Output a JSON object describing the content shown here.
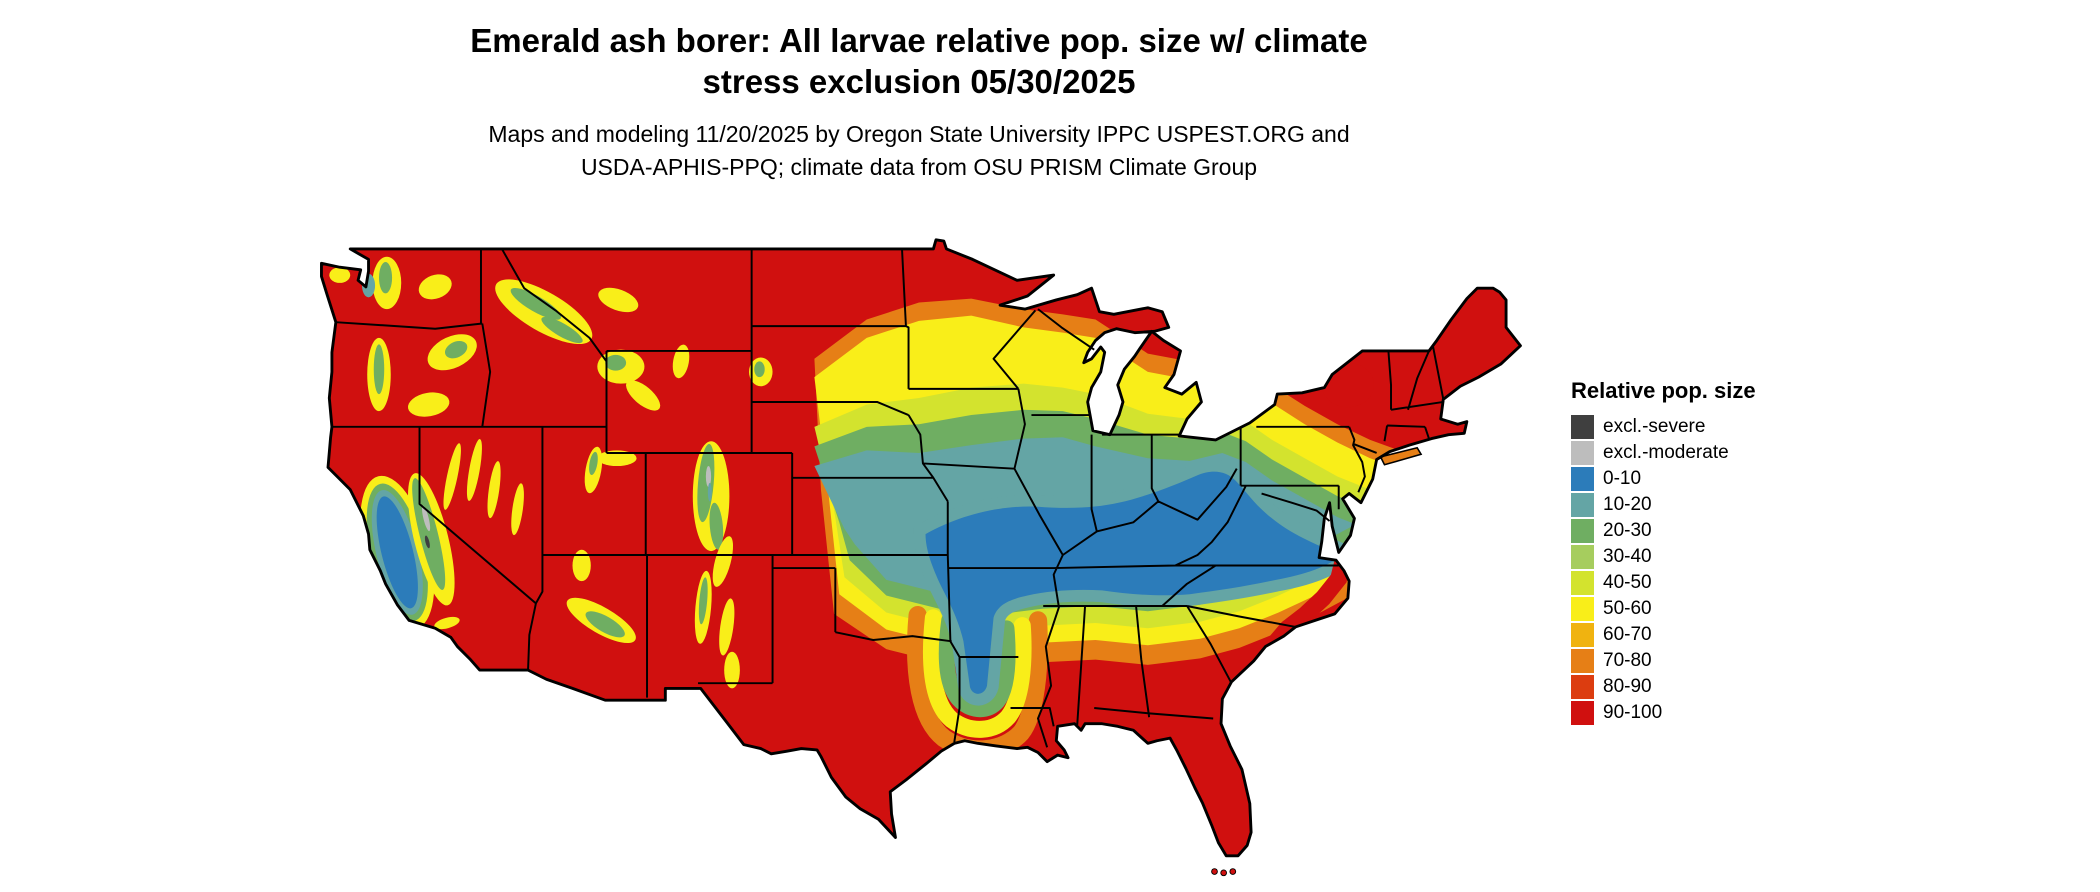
{
  "title": {
    "line1": "Emerald ash borer: All larvae relative pop. size w/ climate",
    "line2": "stress exclusion 05/30/2025"
  },
  "subtitle": {
    "line1": "Maps and modeling 11/20/2025 by Oregon State University IPPC USPEST.ORG and",
    "line2": "USDA-APHIS-PPQ; climate data from OSU PRISM Climate Group"
  },
  "legend": {
    "title": "Relative pop. size",
    "items": [
      {
        "key": "excl-severe",
        "label": "excl.-severe",
        "color": "#3f3f3f"
      },
      {
        "key": "excl-moderate",
        "label": "excl.-moderate",
        "color": "#bdbdbd"
      },
      {
        "key": "0-10",
        "label": "0-10",
        "color": "#2c7cba"
      },
      {
        "key": "10-20",
        "label": "10-20",
        "color": "#64a5a5"
      },
      {
        "key": "20-30",
        "label": "20-30",
        "color": "#6fae62"
      },
      {
        "key": "30-40",
        "label": "30-40",
        "color": "#a6cd5e"
      },
      {
        "key": "40-50",
        "label": "40-50",
        "color": "#d3e32e"
      },
      {
        "key": "50-60",
        "label": "50-60",
        "color": "#f9ee19"
      },
      {
        "key": "60-70",
        "label": "60-70",
        "color": "#f0b310"
      },
      {
        "key": "70-80",
        "label": "70-80",
        "color": "#e67f16"
      },
      {
        "key": "80-90",
        "label": "80-90",
        "color": "#dc3d10"
      },
      {
        "key": "90-100",
        "label": "90-100",
        "color": "#d0100f"
      }
    ]
  },
  "map": {
    "region": "Continental United States",
    "border_color": "#000000",
    "water_color": "#ffffff"
  }
}
